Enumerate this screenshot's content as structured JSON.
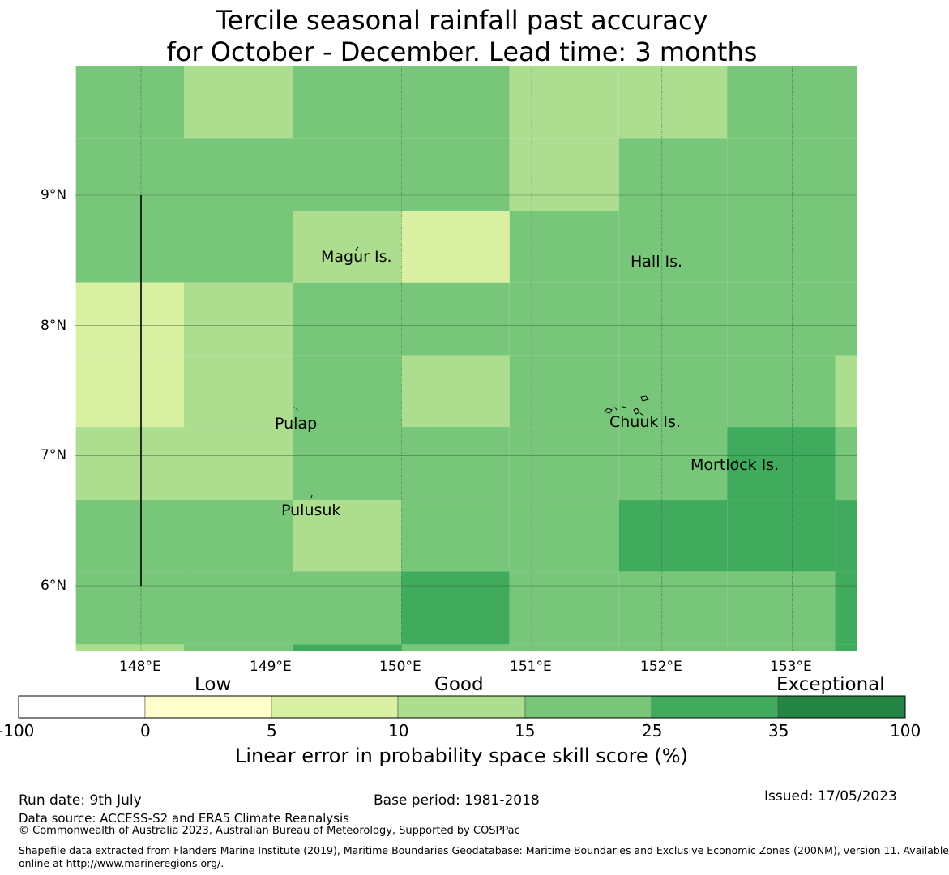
{
  "title": {
    "line1": "Tercile seasonal rainfall past accuracy",
    "line2": "for October - December. Lead time: 3 months"
  },
  "map": {
    "lon_range": [
      147.5,
      153.5
    ],
    "lat_range": [
      5.5,
      10.0
    ],
    "lon_ticks": [
      148,
      149,
      150,
      151,
      152,
      153
    ],
    "lon_tick_labels": [
      "148°E",
      "149°E",
      "150°E",
      "151°E",
      "152°E",
      "153°E"
    ],
    "lat_ticks": [
      6,
      7,
      8,
      9
    ],
    "lat_tick_labels": [
      "6°N",
      "7°N",
      "8°N",
      "9°N"
    ],
    "grid_lines": true,
    "cell_lon_edges": [
      147.5,
      148.33,
      149.17,
      150.0,
      150.83,
      151.67,
      152.5,
      153.33,
      153.5
    ],
    "cell_lat_edges_top_down": [
      10.0,
      9.44,
      8.88,
      8.33,
      7.77,
      7.22,
      6.66,
      6.11,
      5.55,
      5.5
    ],
    "skill_class_grid_top_down": [
      [
        4,
        3,
        4,
        4,
        3,
        3,
        4,
        4
      ],
      [
        4,
        4,
        4,
        4,
        3,
        4,
        4,
        4
      ],
      [
        4,
        4,
        3,
        2,
        4,
        4,
        4,
        4
      ],
      [
        2,
        3,
        4,
        4,
        4,
        4,
        4,
        4
      ],
      [
        2,
        3,
        4,
        3,
        4,
        4,
        4,
        3
      ],
      [
        3,
        3,
        4,
        4,
        4,
        4,
        5,
        4
      ],
      [
        4,
        4,
        3,
        4,
        4,
        5,
        5,
        5
      ],
      [
        4,
        4,
        4,
        5,
        4,
        4,
        4,
        5
      ],
      [
        3,
        4,
        5,
        4,
        4,
        4,
        4,
        5
      ]
    ],
    "boundary_line": {
      "lon": 148,
      "lat_from": 6.0,
      "lat_to": 9.0
    },
    "places": [
      {
        "name": "Magur Is.",
        "lon": 149.68,
        "lat": 8.58
      },
      {
        "name": "Hall Is.",
        "lon": 151.82,
        "lat": 8.54
      },
      {
        "name": "Pulap",
        "lon": 149.2,
        "lat": 7.34
      },
      {
        "name": "Chuuk Is.",
        "lon": 151.83,
        "lat": 7.35
      },
      {
        "name": "Mortlock Is.",
        "lon": 152.58,
        "lat": 7.02
      },
      {
        "name": "Pulusuk",
        "lon": 149.33,
        "lat": 6.68
      }
    ]
  },
  "colorbar": {
    "category_labels": [
      "Low",
      "Good",
      "Exceptional"
    ],
    "tick_labels": [
      "-100",
      "0",
      "5",
      "10",
      "15",
      "25",
      "35",
      "100"
    ],
    "colors": [
      "#ffffff",
      "#ffffcc",
      "#d9f0a3",
      "#addd8e",
      "#78c679",
      "#41ab5d",
      "#238443"
    ],
    "title": "Linear error in probability space skill score (%)"
  },
  "footer": {
    "run_date": "Run date: 9th July",
    "base_period": "Base period: 1981-2018",
    "issued": "Issued: 17/05/2023",
    "data_source": "Data source: ACCESS-S2 and ERA5 Climate Reanalysis",
    "copyright": "© Commonwealth of Australia 2023, Australian Bureau of Meteorology, Supported by COSPPac",
    "shapefile_line1": "Shapefile data extracted from Flanders Marine Institute (2019), Maritime Boundaries Geodatabase: Maritime Boundaries and Exclusive Economic Zones (200NM), version 11. Available",
    "shapefile_line2": "online at http://www.marineregions.org/."
  }
}
